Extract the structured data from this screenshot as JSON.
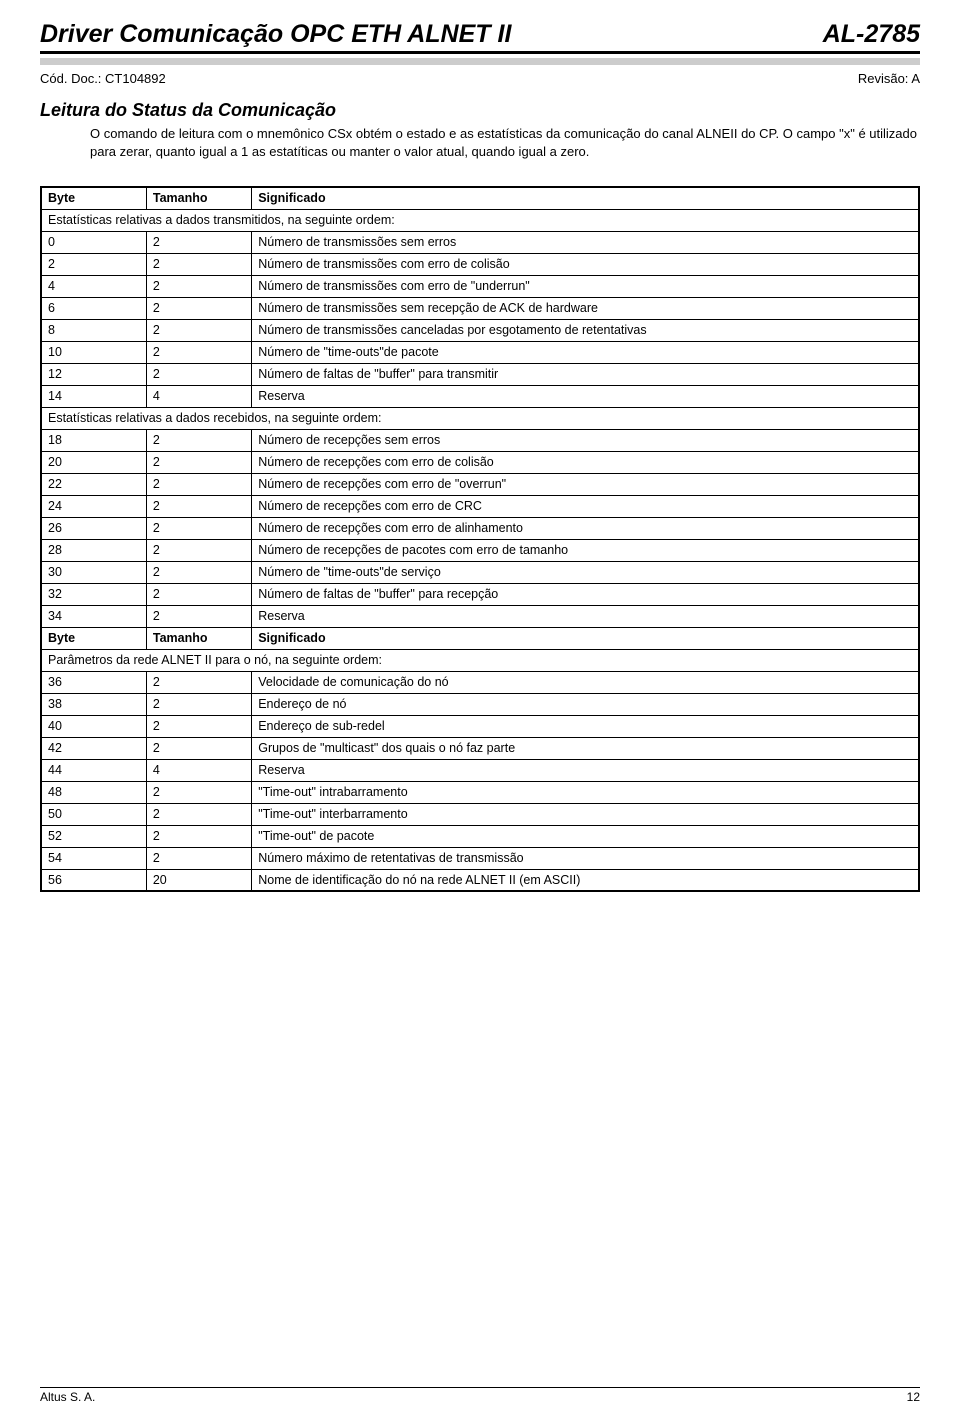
{
  "header": {
    "title": "Driver Comunicação OPC ETH ALNET II",
    "code": "AL-2785"
  },
  "subheader": {
    "doc_code": "Cód. Doc.: CT104892",
    "revision": "Revisão: A"
  },
  "section": {
    "title": "Leitura do Status da Comunicação",
    "paragraph": "O comando de leitura com o mnemônico CSx obtém o estado e as estatísticas da comunicação do canal ALNEII do CP. O campo \"x\" é utilizado para zerar, quanto igual a 1 as estatíticas ou manter o valor atual, quando igual a zero."
  },
  "table": {
    "columns": [
      "Byte",
      "Tamanho",
      "Significado"
    ],
    "col_widths": [
      "12%",
      "12%",
      "76%"
    ],
    "border_color": "#000000",
    "background_color": "#ffffff",
    "font_size": 12.5,
    "rows": [
      {
        "type": "header",
        "cells": [
          "Byte",
          "Tamanho",
          "Significado"
        ]
      },
      {
        "type": "group",
        "text": "Estatísticas relativas a dados transmitidos, na seguinte ordem:"
      },
      {
        "type": "data",
        "cells": [
          "0",
          "2",
          "Número de transmissões sem erros"
        ]
      },
      {
        "type": "data",
        "cells": [
          "2",
          "2",
          "Número de transmissões com erro de colisão"
        ]
      },
      {
        "type": "data",
        "cells": [
          "4",
          "2",
          "Número de transmissões com erro de \"underrun\""
        ]
      },
      {
        "type": "data",
        "cells": [
          "6",
          "2",
          "Número de transmissões sem recepção de ACK de hardware"
        ]
      },
      {
        "type": "data",
        "cells": [
          "8",
          "2",
          "Número de transmissões canceladas por esgotamento de retentativas"
        ]
      },
      {
        "type": "data",
        "cells": [
          "10",
          "2",
          "Número de \"time-outs\"de pacote"
        ]
      },
      {
        "type": "data",
        "cells": [
          "12",
          "2",
          "Número de faltas de \"buffer\" para transmitir"
        ]
      },
      {
        "type": "data",
        "cells": [
          "14",
          "4",
          "Reserva"
        ]
      },
      {
        "type": "group",
        "text": "Estatísticas relativas a dados recebidos, na seguinte ordem:"
      },
      {
        "type": "data",
        "cells": [
          "18",
          "2",
          "Número de recepções sem erros"
        ]
      },
      {
        "type": "data",
        "cells": [
          "20",
          "2",
          "Número de recepções com erro de colisão"
        ]
      },
      {
        "type": "data",
        "cells": [
          "22",
          "2",
          "Número de recepções com erro de \"overrun\""
        ]
      },
      {
        "type": "data",
        "cells": [
          "24",
          "2",
          "Número de recepções com erro de CRC"
        ]
      },
      {
        "type": "data",
        "cells": [
          "26",
          "2",
          "Número de recepções com erro de alinhamento"
        ]
      },
      {
        "type": "data",
        "cells": [
          "28",
          "2",
          "Número de recepções de pacotes com erro de tamanho"
        ]
      },
      {
        "type": "data",
        "cells": [
          "30",
          "2",
          "Número de \"time-outs\"de serviço"
        ]
      },
      {
        "type": "data",
        "cells": [
          "32",
          "2",
          "Número de faltas de \"buffer\" para recepção"
        ]
      },
      {
        "type": "data",
        "cells": [
          "34",
          "2",
          "Reserva"
        ]
      },
      {
        "type": "header",
        "cells": [
          "Byte",
          "Tamanho",
          "Significado"
        ]
      },
      {
        "type": "group",
        "text": "Parâmetros da rede ALNET II para o nó, na seguinte ordem:"
      },
      {
        "type": "data",
        "cells": [
          "36",
          "2",
          "Velocidade de comunicação do nó"
        ]
      },
      {
        "type": "data",
        "cells": [
          "38",
          "2",
          "Endereço de nó"
        ]
      },
      {
        "type": "data",
        "cells": [
          "40",
          "2",
          "Endereço de sub-redel"
        ]
      },
      {
        "type": "data",
        "cells": [
          "42",
          "2",
          "Grupos de \"multicast\" dos quais o nó faz parte"
        ]
      },
      {
        "type": "data",
        "cells": [
          "44",
          "4",
          "Reserva"
        ]
      },
      {
        "type": "data",
        "cells": [
          "48",
          "2",
          "\"Time-out\" intrabarramento"
        ]
      },
      {
        "type": "data",
        "cells": [
          "50",
          "2",
          "\"Time-out\" interbarramento"
        ]
      },
      {
        "type": "data",
        "cells": [
          "52",
          "2",
          "\"Time-out\" de pacote"
        ]
      },
      {
        "type": "data",
        "cells": [
          "54",
          "2",
          "Número máximo de retentativas de transmissão"
        ]
      },
      {
        "type": "data",
        "cells": [
          "56",
          "20",
          "Nome de identificação do nó na rede ALNET II (em ASCII)"
        ]
      }
    ]
  },
  "footer": {
    "company": "Altus S. A.",
    "page": "12"
  },
  "colors": {
    "text": "#000000",
    "background": "#ffffff",
    "gray_bar": "#cccccc",
    "border": "#000000"
  }
}
